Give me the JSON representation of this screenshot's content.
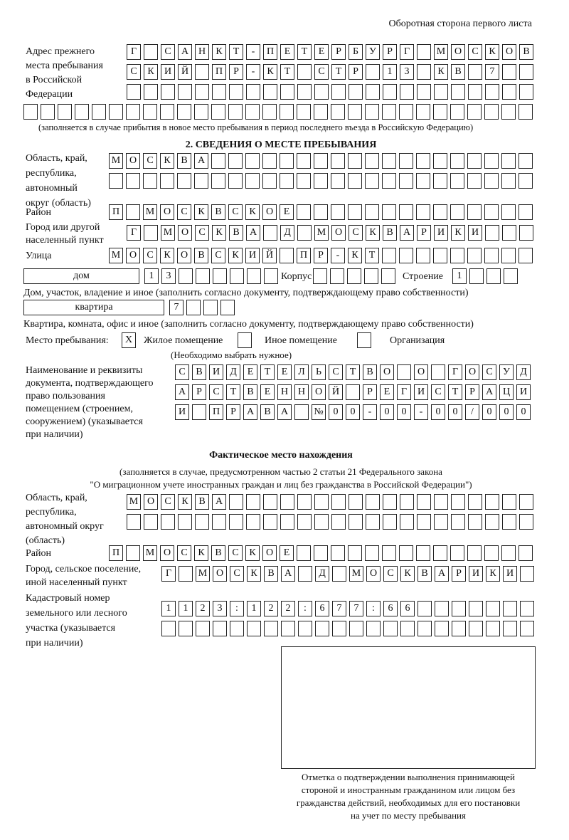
{
  "header": "Оборотная сторона первого листа",
  "prev_address": {
    "label": [
      "Адрес прежнего",
      "места пребывания",
      "в Российской",
      "Федерации"
    ],
    "rows": [
      [
        "Г",
        "",
        "С",
        "А",
        "Н",
        "К",
        "Т",
        "-",
        "П",
        "Е",
        "Т",
        "Е",
        "Р",
        "Б",
        "У",
        "Р",
        "Г",
        "",
        "М",
        "О",
        "С",
        "К",
        "О",
        "В"
      ],
      [
        "С",
        "К",
        "И",
        "Й",
        "",
        "П",
        "Р",
        "-",
        "К",
        "Т",
        "",
        "С",
        "Т",
        "Р",
        "",
        "1",
        "3",
        "",
        "К",
        "В",
        "",
        "7",
        "",
        ""
      ],
      [
        "",
        "",
        "",
        "",
        "",
        "",
        "",
        "",
        "",
        "",
        "",
        "",
        "",
        "",
        "",
        "",
        "",
        "",
        "",
        "",
        "",
        "",
        "",
        ""
      ]
    ],
    "row4_count": 30,
    "note": "(заполняется в случае прибытия в новое место пребывания в период последнего въезда в Российскую Федерацию)"
  },
  "section2": {
    "title": "2. СВЕДЕНИЯ О МЕСТЕ ПРЕБЫВАНИЯ",
    "region_label": [
      "Область, край,",
      "республика,",
      "автономный",
      "округ (область)"
    ],
    "region": [
      "МОСКВА",
      ""
    ],
    "district_label": "Район",
    "district": [
      "П",
      "",
      "М",
      "О",
      "С",
      "К",
      "В",
      "С",
      "К",
      "О",
      "Е"
    ],
    "city_label": [
      "Город или другой",
      "населенный пункт"
    ],
    "city": [
      "Г",
      "",
      "М",
      "О",
      "С",
      "К",
      "В",
      "А",
      "",
      "Д",
      "",
      "М",
      "О",
      "С",
      "К",
      "В",
      "А",
      "Р",
      "И",
      "К",
      "И",
      "",
      "",
      ""
    ],
    "street_label": "Улица",
    "street": [
      "М",
      "О",
      "С",
      "К",
      "О",
      "В",
      "С",
      "К",
      "И",
      "Й",
      "",
      "П",
      "Р",
      "-",
      "К",
      "Т"
    ],
    "house_type": "дом",
    "house": [
      "1",
      "3",
      "",
      "",
      "",
      "",
      "",
      ""
    ],
    "korpus_label": "Корпус",
    "korpus": [
      "",
      "",
      "",
      "",
      ""
    ],
    "building_label": "Строение",
    "building": [
      "1",
      "",
      "",
      ""
    ],
    "house_note": "Дом, участок, владение и иное (заполнить согласно документу, подтверждающему право собственности)",
    "flat_type": "квартира",
    "flat": [
      "7",
      "",
      "",
      ""
    ],
    "flat_note": "Квартира, комната, офис и иное (заполнить согласно документу, подтверждающему право собственности)",
    "place_label": "Место пребывания:",
    "place_options": [
      {
        "label": "Жилое помещение",
        "mark": "Х"
      },
      {
        "label": "Иное помещение",
        "mark": ""
      },
      {
        "label": "Организация",
        "mark": ""
      }
    ],
    "place_note": "(Необходимо выбрать нужное)",
    "doc_label": [
      "Наименование и реквизиты",
      "документа, подтверждающего",
      "право пользования",
      "помещением (строением,",
      "сооружением) (указывается",
      "при наличии)"
    ],
    "doc": [
      [
        "С",
        "В",
        "И",
        "Д",
        "Е",
        "Т",
        "Е",
        "Л",
        "Ь",
        "С",
        "Т",
        "В",
        "О",
        "",
        "О",
        "",
        "Г",
        "О",
        "С",
        "У",
        "Д"
      ],
      [
        "А",
        "Р",
        "С",
        "Т",
        "В",
        "Е",
        "Н",
        "Н",
        "О",
        "Й",
        "",
        "Р",
        "Е",
        "Г",
        "И",
        "С",
        "Т",
        "Р",
        "А",
        "Ц",
        "И"
      ],
      [
        "И",
        "",
        "П",
        "Р",
        "А",
        "В",
        "А",
        "",
        "№",
        "0",
        "0",
        "-",
        "0",
        "0",
        "-",
        "0",
        "0",
        "/",
        "0",
        "0",
        "0"
      ]
    ]
  },
  "actual": {
    "title": "Фактическое место нахождения",
    "note": [
      "(заполняется в случае, предусмотренном частью 2 статьи 21 Федерального закона",
      "\"О миграционном учете иностранных граждан и лиц без гражданства в Российской Федерации\")"
    ],
    "region_label": [
      "Область, край,",
      "республика,",
      "автономный округ",
      "(область)"
    ],
    "region": [
      "МОСКВА",
      ""
    ],
    "district_label": "Район",
    "district": [
      "П",
      "",
      "М",
      "О",
      "С",
      "К",
      "В",
      "С",
      "К",
      "О",
      "Е"
    ],
    "city_label": [
      "Город, сельское поселение,",
      "иной населенный пункт"
    ],
    "city": [
      "Г",
      "",
      "М",
      "О",
      "С",
      "К",
      "В",
      "А",
      "",
      "Д",
      "",
      "М",
      "О",
      "С",
      "К",
      "В",
      "А",
      "Р",
      "И",
      "К",
      "И",
      ""
    ],
    "cadastre_label": [
      "Кадастровый номер",
      "земельного или лесного",
      "участка (указывается",
      "при наличии)"
    ],
    "cadastre": [
      "1",
      "1",
      "2",
      "3",
      ":",
      "1",
      "2",
      "2",
      ":",
      "6",
      "7",
      "7",
      ":",
      "6",
      "6"
    ],
    "stamp_caption": [
      "Отметка о подтверждении выполнения принимающей",
      "стороной и иностранным гражданином или лицом без",
      "гражданства действий, необходимых для его постановки",
      "на учет по месту пребывания"
    ]
  }
}
